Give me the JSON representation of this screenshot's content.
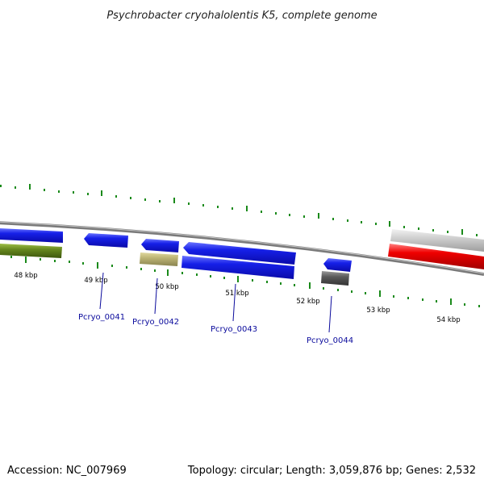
{
  "title": "Psychrobacter cryohalolentis K5, complete genome",
  "footer": {
    "accession": "Accession: NC_007969",
    "summary": "Topology: circular; Length: 3,059,876 bp; Genes: 2,532"
  },
  "tick_labels": [
    "48 kbp",
    "49 kbp",
    "50 kbp",
    "51 kbp",
    "52 kbp",
    "53 kbp",
    "54 kbp"
  ],
  "gene_labels": [
    "Pcryo_0041",
    "Pcryo_0042",
    "Pcryo_0043",
    "Pcryo_0044"
  ],
  "colors": {
    "backbone": "#7a7a7a",
    "cds_blue": "#0a14e0",
    "green": "#5a7a18",
    "khaki": "#b8b070",
    "dark_gray": "#555555",
    "light_gray": "#bdbdbd",
    "red": "#ee0000",
    "tick": "#1a8a1a",
    "label_blue": "#0a0a9c"
  }
}
